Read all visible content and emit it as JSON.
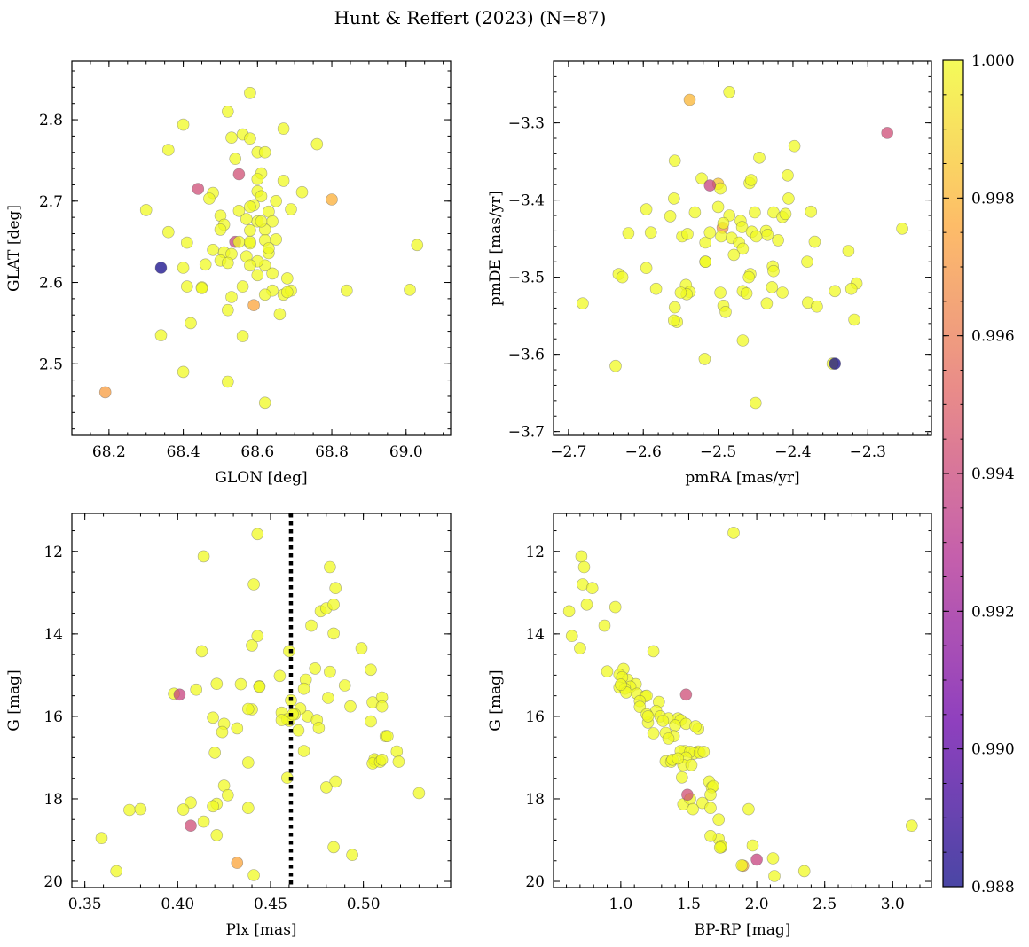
{
  "figure": {
    "title": "Hunt & Reffert (2023) (N=87)",
    "colormap": "plasma",
    "colormap_stops": [
      "#0d0887",
      "#6a00a8",
      "#b12a90",
      "#e16462",
      "#fca636",
      "#f0f921"
    ],
    "point_alpha": 0.75,
    "colorbar": {
      "min": 0.988,
      "max": 1.0,
      "ticks": [
        "0.988",
        "0.990",
        "0.992",
        "0.994",
        "0.996",
        "0.998",
        "1.000"
      ]
    }
  },
  "chart_data": [
    {
      "type": "scatter",
      "xlabel": "GLON [deg]",
      "ylabel": "GLAT [deg]",
      "xlim": [
        68.1,
        69.12
      ],
      "ylim": [
        2.412,
        2.872
      ],
      "y_inverted": false,
      "xticks": [
        "68.2",
        "68.4",
        "68.6",
        "68.8",
        "69.0"
      ],
      "yticks": [
        "2.5",
        "2.6",
        "2.7",
        "2.8"
      ],
      "x": [
        68.58,
        68.52,
        68.67,
        68.4,
        68.56,
        68.53,
        68.58,
        68.36,
        68.6,
        68.76,
        68.62,
        68.61,
        68.54,
        68.48,
        68.6,
        68.6,
        68.67,
        68.72,
        68.61,
        68.47,
        68.59,
        68.5,
        68.55,
        68.3,
        68.58,
        68.63,
        68.51,
        68.6,
        68.69,
        68.57,
        68.64,
        68.62,
        68.58,
        68.62,
        68.65,
        68.36,
        68.41,
        68.5,
        68.63,
        68.51,
        68.58,
        68.5,
        68.53,
        68.46,
        68.52,
        68.62,
        68.6,
        68.4,
        68.64,
        68.6,
        68.68,
        68.67,
        68.45,
        68.41,
        68.45,
        68.69,
        68.68,
        68.53,
        68.84,
        69.01,
        68.52,
        68.59,
        68.66,
        68.42,
        68.56,
        68.34,
        68.4,
        68.52,
        68.62,
        68.19,
        69.03,
        68.63,
        68.57,
        68.64,
        68.58,
        68.44,
        68.55,
        68.34,
        68.8,
        68.54,
        68.58,
        68.62,
        68.55,
        68.48,
        68.56,
        68.61,
        68.65
      ],
      "y": [
        2.833,
        2.81,
        2.789,
        2.794,
        2.782,
        2.778,
        2.777,
        2.763,
        2.76,
        2.77,
        2.76,
        2.734,
        2.752,
        2.71,
        2.727,
        2.712,
        2.725,
        2.711,
        2.706,
        2.703,
        2.695,
        2.682,
        2.688,
        2.689,
        2.693,
        2.687,
        2.671,
        2.675,
        2.69,
        2.678,
        2.675,
        2.665,
        2.664,
        2.652,
        2.653,
        2.662,
        2.649,
        2.665,
        2.636,
        2.637,
        2.648,
        2.627,
        2.635,
        2.622,
        2.624,
        2.621,
        2.626,
        2.618,
        2.611,
        2.609,
        2.605,
        2.585,
        2.594,
        2.595,
        2.593,
        2.59,
        2.588,
        2.582,
        2.59,
        2.591,
        2.566,
        2.572,
        2.561,
        2.55,
        2.534,
        2.535,
        2.49,
        2.478,
        2.452,
        2.465,
        2.646,
        2.642,
        2.632,
        2.59,
        2.621,
        2.715,
        2.733,
        2.618,
        2.702,
        2.65,
        2.65,
        2.585,
        2.65,
        2.64,
        2.595,
        2.675,
        2.7
      ],
      "c": [
        1.0,
        1.0,
        1.0,
        1.0,
        1.0,
        1.0,
        1.0,
        1.0,
        1.0,
        1.0,
        1.0,
        1.0,
        1.0,
        1.0,
        1.0,
        1.0,
        1.0,
        1.0,
        1.0,
        1.0,
        1.0,
        1.0,
        1.0,
        1.0,
        1.0,
        1.0,
        1.0,
        1.0,
        1.0,
        1.0,
        1.0,
        1.0,
        1.0,
        1.0,
        1.0,
        1.0,
        1.0,
        1.0,
        1.0,
        1.0,
        1.0,
        1.0,
        1.0,
        1.0,
        1.0,
        1.0,
        1.0,
        1.0,
        1.0,
        1.0,
        1.0,
        1.0,
        1.0,
        1.0,
        1.0,
        1.0,
        1.0,
        1.0,
        1.0,
        1.0,
        1.0,
        0.9975,
        1.0,
        1.0,
        1.0,
        1.0,
        1.0,
        1.0,
        1.0,
        0.9972,
        1.0,
        1.0,
        1.0,
        1.0,
        1.0,
        0.9942,
        0.9943,
        0.9881,
        0.9978,
        0.9938,
        1.0,
        1.0,
        1.0,
        1.0,
        1.0,
        1.0,
        1.0
      ]
    },
    {
      "type": "scatter",
      "xlabel": "pmRA [mas/yr]",
      "ylabel": "pmDE [mas/yr]",
      "xlim": [
        -2.72,
        -2.215
      ],
      "ylim": [
        -3.705,
        -3.22
      ],
      "y_inverted": false,
      "xticks": [
        "−2.7",
        "−2.6",
        "−2.5",
        "−2.4",
        "−2.3"
      ],
      "yticks": [
        "−3.7",
        "−3.6",
        "−3.5",
        "−3.4",
        "−3.3"
      ],
      "x": [
        -2.538,
        -2.485,
        -2.398,
        -2.445,
        -2.558,
        -2.407,
        -2.522,
        -2.458,
        -2.5,
        -2.456,
        -2.497,
        -2.559,
        -2.596,
        -2.426,
        -2.531,
        -2.564,
        -2.5,
        -2.451,
        -2.485,
        -2.47,
        -2.548,
        -2.59,
        -2.62,
        -2.541,
        -2.517,
        -2.494,
        -2.468,
        -2.455,
        -2.496,
        -2.449,
        -2.482,
        -2.472,
        -2.517,
        -2.467,
        -2.376,
        -2.406,
        -2.414,
        -2.436,
        -2.434,
        -2.479,
        -2.517,
        -2.427,
        -2.457,
        -2.426,
        -2.467,
        -2.428,
        -2.543,
        -2.538,
        -2.596,
        -2.633,
        -2.637,
        -2.628,
        -2.583,
        -2.462,
        -2.435,
        -2.414,
        -2.459,
        -2.38,
        -2.344,
        -2.315,
        -2.368,
        -2.497,
        -2.371,
        -2.326,
        -2.493,
        -2.558,
        -2.555,
        -2.559,
        -2.42,
        -2.518,
        -2.49,
        -2.681,
        -2.467,
        -2.542,
        -2.45,
        -2.511,
        -2.493,
        -2.511,
        -2.41,
        -2.381,
        -2.254,
        -2.322,
        -2.318,
        -2.347,
        -2.344,
        -2.274,
        -2.55
      ],
      "y": [
        -3.27,
        -3.26,
        -3.33,
        -3.345,
        -3.349,
        -3.368,
        -3.372,
        -3.378,
        -3.379,
        -3.374,
        -3.385,
        -3.398,
        -3.412,
        -3.416,
        -3.416,
        -3.421,
        -3.409,
        -3.416,
        -3.42,
        -3.427,
        -3.447,
        -3.442,
        -3.443,
        -3.444,
        -3.455,
        -3.436,
        -3.435,
        -3.441,
        -3.447,
        -3.447,
        -3.449,
        -3.455,
        -3.48,
        -3.463,
        -3.415,
        -3.398,
        -3.422,
        -3.44,
        -3.445,
        -3.471,
        -3.48,
        -3.486,
        -3.496,
        -3.492,
        -3.518,
        -3.513,
        -3.51,
        -3.519,
        -3.488,
        -3.496,
        -3.615,
        -3.5,
        -3.515,
        -3.521,
        -3.534,
        -3.52,
        -3.5,
        -3.533,
        -3.518,
        -3.508,
        -3.538,
        -3.52,
        -3.454,
        -3.466,
        -3.537,
        -3.539,
        -3.558,
        -3.556,
        -3.452,
        -3.606,
        -3.545,
        -3.534,
        -3.582,
        -3.522,
        -3.663,
        -3.442,
        -3.43,
        -3.381,
        -3.418,
        -3.48,
        -3.437,
        -3.515,
        -3.555,
        -3.612,
        -3.612,
        -3.313,
        -3.52
      ],
      "c": [
        0.998,
        1.0,
        1.0,
        1.0,
        1.0,
        1.0,
        1.0,
        1.0,
        0.9985,
        1.0,
        1.0,
        1.0,
        1.0,
        1.0,
        1.0,
        1.0,
        1.0,
        1.0,
        1.0,
        1.0,
        1.0,
        1.0,
        1.0,
        1.0,
        1.0,
        0.997,
        1.0,
        1.0,
        1.0,
        1.0,
        1.0,
        1.0,
        1.0,
        1.0,
        1.0,
        1.0,
        1.0,
        1.0,
        1.0,
        1.0,
        1.0,
        1.0,
        1.0,
        1.0,
        1.0,
        1.0,
        1.0,
        1.0,
        1.0,
        1.0,
        1.0,
        1.0,
        1.0,
        1.0,
        1.0,
        1.0,
        1.0,
        1.0,
        1.0,
        1.0,
        1.0,
        1.0,
        1.0,
        1.0,
        1.0,
        1.0,
        1.0,
        1.0,
        1.0,
        1.0,
        1.0,
        1.0,
        1.0,
        1.0,
        1.0,
        1.0,
        1.0,
        0.9938,
        1.0,
        1.0,
        1.0,
        1.0,
        1.0,
        1.0,
        0.9881,
        0.9942,
        1.0
      ]
    },
    {
      "type": "scatter",
      "xlabel": "Plx [mas]",
      "ylabel": "G [mag]",
      "xlim": [
        0.343,
        0.547
      ],
      "ylim": [
        20.15,
        11.08
      ],
      "y_inverted": true,
      "xticks": [
        "0.35",
        "0.40",
        "0.45",
        "0.50"
      ],
      "yticks": [
        "12",
        "14",
        "16",
        "18",
        "20"
      ],
      "vline": {
        "x": 0.461
      },
      "x": [
        0.443,
        0.414,
        0.482,
        0.441,
        0.485,
        0.477,
        0.48,
        0.484,
        0.472,
        0.484,
        0.44,
        0.443,
        0.499,
        0.413,
        0.46,
        0.469,
        0.474,
        0.482,
        0.49,
        0.504,
        0.455,
        0.434,
        0.421,
        0.398,
        0.41,
        0.444,
        0.461,
        0.468,
        0.44,
        0.493,
        0.481,
        0.505,
        0.47,
        0.456,
        0.466,
        0.419,
        0.438,
        0.51,
        0.51,
        0.504,
        0.463,
        0.46,
        0.512,
        0.475,
        0.506,
        0.425,
        0.424,
        0.432,
        0.465,
        0.513,
        0.518,
        0.42,
        0.401,
        0.438,
        0.468,
        0.459,
        0.506,
        0.505,
        0.485,
        0.48,
        0.519,
        0.425,
        0.421,
        0.53,
        0.407,
        0.419,
        0.438,
        0.403,
        0.414,
        0.374,
        0.407,
        0.38,
        0.359,
        0.421,
        0.367,
        0.441,
        0.432,
        0.494,
        0.484,
        0.509,
        0.51,
        0.459,
        0.444,
        0.462,
        0.476,
        0.427,
        0.456
      ],
      "y": [
        11.58,
        12.12,
        12.38,
        12.8,
        12.89,
        13.45,
        13.38,
        13.29,
        13.8,
        13.99,
        14.28,
        14.05,
        14.35,
        14.42,
        14.42,
        15.11,
        14.84,
        14.92,
        15.25,
        14.87,
        15.02,
        15.22,
        15.21,
        15.45,
        15.35,
        15.27,
        15.61,
        15.33,
        15.83,
        15.76,
        15.55,
        15.66,
        16.0,
        15.91,
        15.81,
        16.03,
        15.82,
        15.54,
        15.76,
        16.12,
        15.95,
        16.11,
        16.48,
        16.09,
        17.1,
        16.18,
        16.38,
        16.29,
        16.34,
        16.48,
        16.85,
        16.88,
        15.47,
        17.12,
        16.84,
        17.49,
        17.04,
        17.14,
        17.58,
        17.72,
        17.1,
        17.68,
        18.12,
        17.86,
        18.09,
        18.18,
        18.22,
        18.26,
        18.55,
        18.27,
        18.65,
        18.25,
        18.95,
        18.88,
        19.75,
        19.85,
        19.55,
        19.36,
        19.17,
        17.1,
        17.05,
        16.07,
        15.28,
        15.95,
        16.28,
        17.91,
        16.09
      ],
      "c": [
        1.0,
        1.0,
        1.0,
        1.0,
        1.0,
        1.0,
        1.0,
        1.0,
        1.0,
        1.0,
        1.0,
        1.0,
        1.0,
        1.0,
        1.0,
        1.0,
        1.0,
        1.0,
        1.0,
        1.0,
        1.0,
        1.0,
        1.0,
        1.0,
        1.0,
        1.0,
        1.0,
        1.0,
        1.0,
        1.0,
        1.0,
        1.0,
        1.0,
        1.0,
        1.0,
        1.0,
        1.0,
        1.0,
        1.0,
        1.0,
        1.0,
        1.0,
        1.0,
        1.0,
        1.0,
        1.0,
        1.0,
        1.0,
        1.0,
        1.0,
        1.0,
        1.0,
        0.9938,
        1.0,
        1.0,
        1.0,
        1.0,
        1.0,
        1.0,
        1.0,
        1.0,
        1.0,
        1.0,
        1.0,
        1.0,
        1.0,
        1.0,
        1.0,
        1.0,
        1.0,
        0.9942,
        1.0,
        1.0,
        1.0,
        1.0,
        1.0,
        0.9975,
        1.0,
        1.0,
        1.0,
        1.0,
        1.0,
        1.0,
        1.0,
        1.0,
        1.0,
        1.0
      ]
    },
    {
      "type": "scatter",
      "xlabel": "BP-RP [mag]",
      "ylabel": "G [mag]",
      "xlim": [
        0.505,
        3.285
      ],
      "ylim": [
        20.15,
        11.08
      ],
      "y_inverted": true,
      "xticks": [
        "1.0",
        "1.5",
        "2.0",
        "2.5",
        "3.0"
      ],
      "yticks": [
        "12",
        "14",
        "16",
        "18",
        "20"
      ],
      "x": [
        1.83,
        0.71,
        0.73,
        0.72,
        0.79,
        0.75,
        0.96,
        0.62,
        0.88,
        0.64,
        0.7,
        1.24,
        1.02,
        0.99,
        1.05,
        1.11,
        1.01,
        1.07,
        0.99,
        1.03,
        1.04,
        1.12,
        1.18,
        1.19,
        1.14,
        1.28,
        1.14,
        1.26,
        1.29,
        1.2,
        1.19,
        1.35,
        1.31,
        1.42,
        1.44,
        1.4,
        1.48,
        1.47,
        1.44,
        1.24,
        1.39,
        1.57,
        1.54,
        1.51,
        1.33,
        1.37,
        1.38,
        1.48,
        1.46,
        1.52,
        1.45,
        1.65,
        1.67,
        1.68,
        1.72,
        1.6,
        1.66,
        1.66,
        1.46,
        1.51,
        1.53,
        1.72,
        1.94,
        1.74,
        1.66,
        1.74,
        1.73,
        1.97,
        2.12,
        2.13,
        2.35,
        1.9,
        2.0,
        3.14,
        1.48,
        1.49,
        1.58,
        1.61,
        1.89,
        1.57,
        1.55,
        1.33,
        1.35,
        1.0,
        0.9,
        1.2,
        1.42
      ],
      "y": [
        11.55,
        12.12,
        12.38,
        12.8,
        12.89,
        13.29,
        13.35,
        13.45,
        13.8,
        14.05,
        14.35,
        14.42,
        14.85,
        14.99,
        15.11,
        15.22,
        15.05,
        15.28,
        15.3,
        15.33,
        15.42,
        15.45,
        15.51,
        15.5,
        15.63,
        15.65,
        15.77,
        15.87,
        16.0,
        16.15,
        15.95,
        16.05,
        16.11,
        16.05,
        16.09,
        16.22,
        16.18,
        16.84,
        16.84,
        16.41,
        16.48,
        16.85,
        16.9,
        16.86,
        17.09,
        17.1,
        17.05,
        17.0,
        17.18,
        17.18,
        17.48,
        17.58,
        17.72,
        17.69,
        18.5,
        18.1,
        18.22,
        17.9,
        18.13,
        18.0,
        18.25,
        18.97,
        18.25,
        19.17,
        18.9,
        19.14,
        19.18,
        19.13,
        19.44,
        19.87,
        19.75,
        19.62,
        19.47,
        18.65,
        15.47,
        17.9,
        16.88,
        16.86,
        19.61,
        16.3,
        16.24,
        16.4,
        16.54,
        15.23,
        14.91,
        16.0,
        17.02
      ],
      "c": [
        1.0,
        1.0,
        1.0,
        1.0,
        1.0,
        1.0,
        1.0,
        1.0,
        1.0,
        1.0,
        1.0,
        1.0,
        1.0,
        1.0,
        1.0,
        1.0,
        1.0,
        1.0,
        1.0,
        1.0,
        1.0,
        1.0,
        1.0,
        1.0,
        1.0,
        1.0,
        1.0,
        1.0,
        1.0,
        1.0,
        1.0,
        1.0,
        1.0,
        1.0,
        1.0,
        1.0,
        1.0,
        1.0,
        1.0,
        1.0,
        1.0,
        1.0,
        1.0,
        1.0,
        1.0,
        1.0,
        1.0,
        1.0,
        1.0,
        1.0,
        1.0,
        1.0,
        1.0,
        1.0,
        1.0,
        1.0,
        1.0,
        1.0,
        1.0,
        1.0,
        1.0,
        1.0,
        1.0,
        1.0,
        1.0,
        1.0,
        1.0,
        1.0,
        1.0,
        1.0,
        1.0,
        0.9975,
        0.9938,
        1.0,
        0.9942,
        0.9943,
        1.0,
        1.0,
        1.0,
        1.0,
        1.0,
        1.0,
        1.0,
        1.0,
        1.0,
        1.0,
        1.0
      ]
    }
  ]
}
